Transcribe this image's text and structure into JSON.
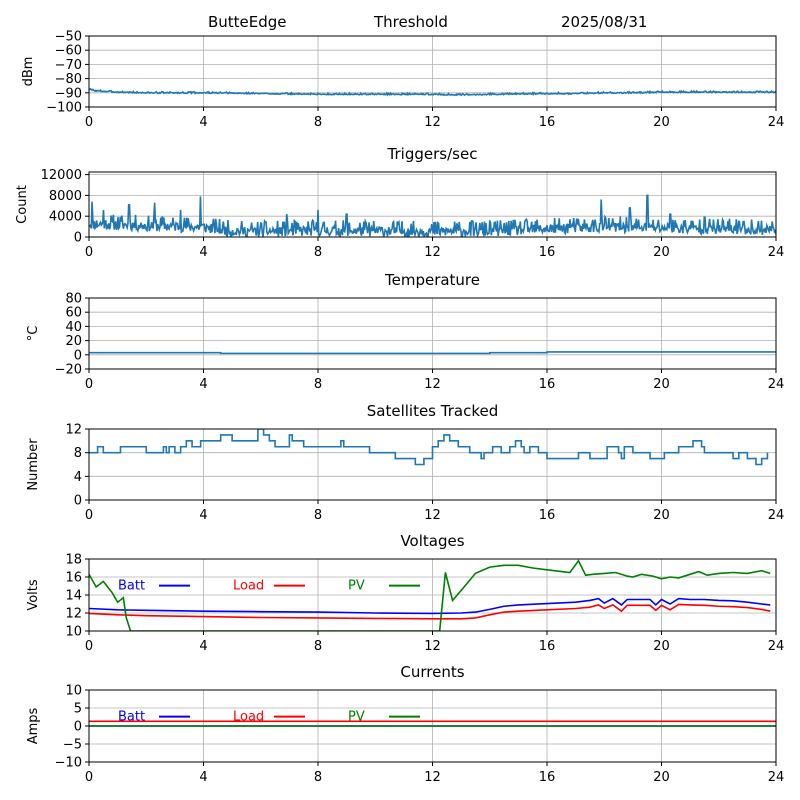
{
  "header": {
    "station": "ButteEdge",
    "panel_name": "Threshold",
    "date": "2025/08/31"
  },
  "chart_data": [
    {
      "type": "line",
      "title": "",
      "xlabel": "",
      "ylabel": "dBm",
      "xlim": [
        0,
        24
      ],
      "ylim": [
        -100,
        -50
      ],
      "xticks": [
        0,
        4,
        8,
        12,
        16,
        20,
        24
      ],
      "yticks": [
        -100,
        -90,
        -80,
        -70,
        -60,
        -50
      ],
      "grid": true,
      "noise": {
        "amp": 0.4,
        "seed": 3
      },
      "series": [
        {
          "color": "#1f77b4",
          "x": [
            0,
            0.2,
            1,
            2,
            4,
            6,
            8,
            10,
            12,
            13,
            14,
            16,
            17,
            18,
            19,
            20,
            21,
            22,
            23,
            24
          ],
          "y": [
            -87.5,
            -88.5,
            -89.5,
            -90,
            -90,
            -90.5,
            -91,
            -91,
            -91,
            -91.5,
            -91,
            -90.5,
            -90.5,
            -90,
            -90,
            -89.5,
            -89.5,
            -89.5,
            -89.5,
            -89.5
          ]
        }
      ]
    },
    {
      "type": "line",
      "title": "Triggers/sec",
      "xlabel": "",
      "ylabel": "Count",
      "xlim": [
        0,
        24
      ],
      "ylim": [
        0,
        12500
      ],
      "xticks": [
        0,
        4,
        8,
        12,
        16,
        20,
        24
      ],
      "yticks": [
        0,
        4000,
        8000,
        12000
      ],
      "grid": true,
      "noise": {
        "amp": 1100,
        "seed": 11
      },
      "spikes": [
        [
          0.1,
          6800
        ],
        [
          0.5,
          5200
        ],
        [
          1.4,
          6200
        ],
        [
          2.3,
          6600
        ],
        [
          3.2,
          5200
        ],
        [
          3.9,
          7800
        ],
        [
          6.9,
          4400
        ],
        [
          8.0,
          5200
        ],
        [
          9.0,
          4400
        ],
        [
          14.0,
          3200
        ],
        [
          16.8,
          3400
        ],
        [
          17.9,
          7200
        ],
        [
          18.9,
          5600
        ],
        [
          19.5,
          8000
        ],
        [
          20.3,
          4400
        ],
        [
          21.5,
          3800
        ],
        [
          22.7,
          3000
        ]
      ],
      "series": [
        {
          "color": "#1f77b4",
          "x": [
            0,
            1,
            2,
            3,
            4,
            5,
            6,
            8,
            10,
            12,
            14,
            16,
            18,
            20,
            22,
            24
          ],
          "y": [
            2600,
            2400,
            2200,
            2100,
            1900,
            1200,
            1100,
            1300,
            1200,
            1100,
            1200,
            1600,
            2000,
            1800,
            1600,
            1500
          ]
        }
      ]
    },
    {
      "type": "line",
      "title": "Temperature",
      "xlabel": "",
      "ylabel": "°C",
      "xlim": [
        0,
        24
      ],
      "ylim": [
        -20,
        80
      ],
      "xticks": [
        0,
        4,
        8,
        12,
        16,
        20,
        24
      ],
      "yticks": [
        -20,
        0,
        20,
        40,
        60,
        80
      ],
      "grid": true,
      "series": [
        {
          "color": "#1f77b4",
          "step": true,
          "x": [
            0,
            4.6,
            14.0,
            16.0,
            24
          ],
          "y": [
            3,
            2,
            3,
            4,
            4
          ]
        }
      ]
    },
    {
      "type": "line",
      "title": "Satellites Tracked",
      "xlabel": "",
      "ylabel": "Number",
      "xlim": [
        0,
        24
      ],
      "ylim": [
        0,
        12
      ],
      "xticks": [
        0,
        4,
        8,
        12,
        16,
        20,
        24
      ],
      "yticks": [
        0,
        4,
        8,
        12
      ],
      "grid": true,
      "series": [
        {
          "color": "#1f77b4",
          "step": true,
          "x": [
            0,
            0.3,
            0.5,
            0.9,
            1.1,
            2.0,
            2.6,
            2.7,
            2.8,
            3.0,
            3.2,
            3.4,
            3.6,
            3.9,
            4.2,
            4.6,
            5.0,
            5.9,
            6.1,
            6.3,
            6.5,
            7.0,
            7.1,
            7.5,
            8.0,
            8.8,
            8.9,
            9.5,
            9.8,
            10.7,
            11.4,
            11.7,
            12.0,
            12.2,
            12.4,
            12.6,
            12.9,
            13.3,
            13.7,
            13.8,
            14.1,
            14.4,
            14.7,
            14.9,
            15.1,
            15.2,
            15.4,
            15.7,
            16.0,
            17.1,
            17.5,
            18.1,
            18.5,
            18.6,
            18.7,
            19.0,
            19.6,
            20.1,
            20.3,
            20.6,
            21.1,
            21.4,
            21.5,
            22.2,
            22.5,
            22.7,
            23.0,
            23.3,
            23.5,
            23.7
          ],
          "y": [
            8,
            9,
            8,
            8,
            9,
            8,
            9,
            8,
            9,
            8,
            9,
            10,
            9,
            10,
            10,
            11,
            10,
            12,
            11,
            10,
            9,
            11,
            10,
            9,
            9,
            10,
            9,
            9,
            8,
            7,
            6,
            7,
            9,
            10,
            11,
            10,
            9,
            8,
            7,
            8,
            9,
            8,
            9,
            10,
            9,
            8,
            9,
            8,
            7,
            8,
            7,
            9,
            8,
            7,
            9,
            8,
            7,
            8,
            8,
            9,
            10,
            9,
            8,
            8,
            7,
            8,
            7,
            6,
            7,
            8
          ]
        }
      ]
    },
    {
      "type": "line",
      "title": "Voltages",
      "xlabel": "",
      "ylabel": "Volts",
      "xlim": [
        0,
        24
      ],
      "ylim": [
        10,
        18
      ],
      "xticks": [
        0,
        4,
        8,
        12,
        16,
        20,
        24
      ],
      "yticks": [
        10,
        12,
        14,
        16,
        18
      ],
      "grid": true,
      "legend": [
        {
          "label": "Batt",
          "color": "#0000ff"
        },
        {
          "label": "Load",
          "color": "#ff0000"
        },
        {
          "label": "PV",
          "color": "#008000"
        }
      ],
      "series": [
        {
          "name": "Batt",
          "color": "#0000ff",
          "x": [
            0,
            1,
            2,
            4,
            6,
            8,
            10,
            12,
            13,
            13.5,
            14,
            14.5,
            15,
            16,
            17,
            17.5,
            17.8,
            18.0,
            18.3,
            18.6,
            18.8,
            19.2,
            19.6,
            19.8,
            20.0,
            20.3,
            20.6,
            21.0,
            21.5,
            22.0,
            22.5,
            23,
            23.5,
            23.8
          ],
          "y": [
            12.5,
            12.35,
            12.3,
            12.2,
            12.15,
            12.1,
            12.0,
            11.95,
            12.0,
            12.1,
            12.4,
            12.75,
            12.9,
            13.05,
            13.2,
            13.4,
            13.6,
            13.1,
            13.6,
            12.9,
            13.5,
            13.5,
            13.5,
            12.9,
            13.5,
            13.0,
            13.6,
            13.5,
            13.5,
            13.4,
            13.35,
            13.2,
            13.0,
            12.9
          ]
        },
        {
          "name": "Load",
          "color": "#ff0000",
          "x": [
            0,
            1,
            2,
            4,
            6,
            8,
            10,
            12,
            13,
            13.5,
            14,
            14.5,
            15,
            16,
            17,
            17.5,
            17.8,
            18.0,
            18.3,
            18.6,
            18.8,
            19.2,
            19.6,
            19.8,
            20.0,
            20.3,
            20.6,
            21.0,
            21.5,
            22.0,
            22.5,
            23,
            23.5,
            23.8
          ],
          "y": [
            11.95,
            11.8,
            11.7,
            11.6,
            11.5,
            11.45,
            11.4,
            11.35,
            11.35,
            11.45,
            11.8,
            12.1,
            12.2,
            12.35,
            12.5,
            12.65,
            12.9,
            12.5,
            12.9,
            12.2,
            12.85,
            12.85,
            12.85,
            12.3,
            12.85,
            12.35,
            12.95,
            12.9,
            12.85,
            12.75,
            12.7,
            12.6,
            12.4,
            12.2
          ]
        },
        {
          "name": "PV",
          "color": "#008000",
          "x": [
            0,
            0.25,
            0.5,
            0.8,
            1.0,
            1.2,
            1.3,
            1.45,
            12.25,
            12.45,
            12.7,
            13.0,
            13.5,
            14.0,
            14.5,
            15.0,
            15.5,
            16.0,
            16.5,
            16.8,
            17.1,
            17.35,
            17.6,
            18.0,
            18.4,
            18.8,
            19.0,
            19.3,
            19.7,
            20.0,
            20.3,
            20.6,
            21.0,
            21.3,
            21.6,
            22.0,
            22.5,
            23.0,
            23.5,
            23.8
          ],
          "y": [
            16.3,
            14.9,
            15.5,
            14.3,
            13.2,
            13.7,
            11.5,
            10.0,
            10.0,
            16.5,
            13.4,
            14.5,
            16.4,
            17.1,
            17.3,
            17.3,
            17.0,
            16.8,
            16.6,
            16.5,
            17.8,
            16.2,
            16.3,
            16.4,
            16.5,
            16.1,
            16.0,
            16.3,
            16.1,
            15.8,
            16.0,
            15.9,
            16.3,
            16.6,
            16.2,
            16.4,
            16.5,
            16.4,
            16.7,
            16.4
          ]
        }
      ]
    },
    {
      "type": "line",
      "title": "Currents",
      "xlabel": "",
      "ylabel": "Amps",
      "xlim": [
        0,
        24
      ],
      "ylim": [
        -10,
        10
      ],
      "xticks": [
        0,
        4,
        8,
        12,
        16,
        20,
        24
      ],
      "yticks": [
        -10,
        -5,
        0,
        5,
        10
      ],
      "grid": true,
      "legend": [
        {
          "label": "Batt",
          "color": "#0000ff"
        },
        {
          "label": "Load",
          "color": "#ff0000"
        },
        {
          "label": "PV",
          "color": "#008000"
        }
      ],
      "series": [
        {
          "name": "Batt",
          "color": "#0000ff",
          "x": [
            0,
            24
          ],
          "y": [
            0,
            0
          ]
        },
        {
          "name": "Load",
          "color": "#ff0000",
          "x": [
            0,
            24
          ],
          "y": [
            1.3,
            1.3
          ]
        },
        {
          "name": "PV",
          "color": "#008000",
          "x": [
            0,
            24
          ],
          "y": [
            0,
            0
          ]
        }
      ]
    }
  ]
}
